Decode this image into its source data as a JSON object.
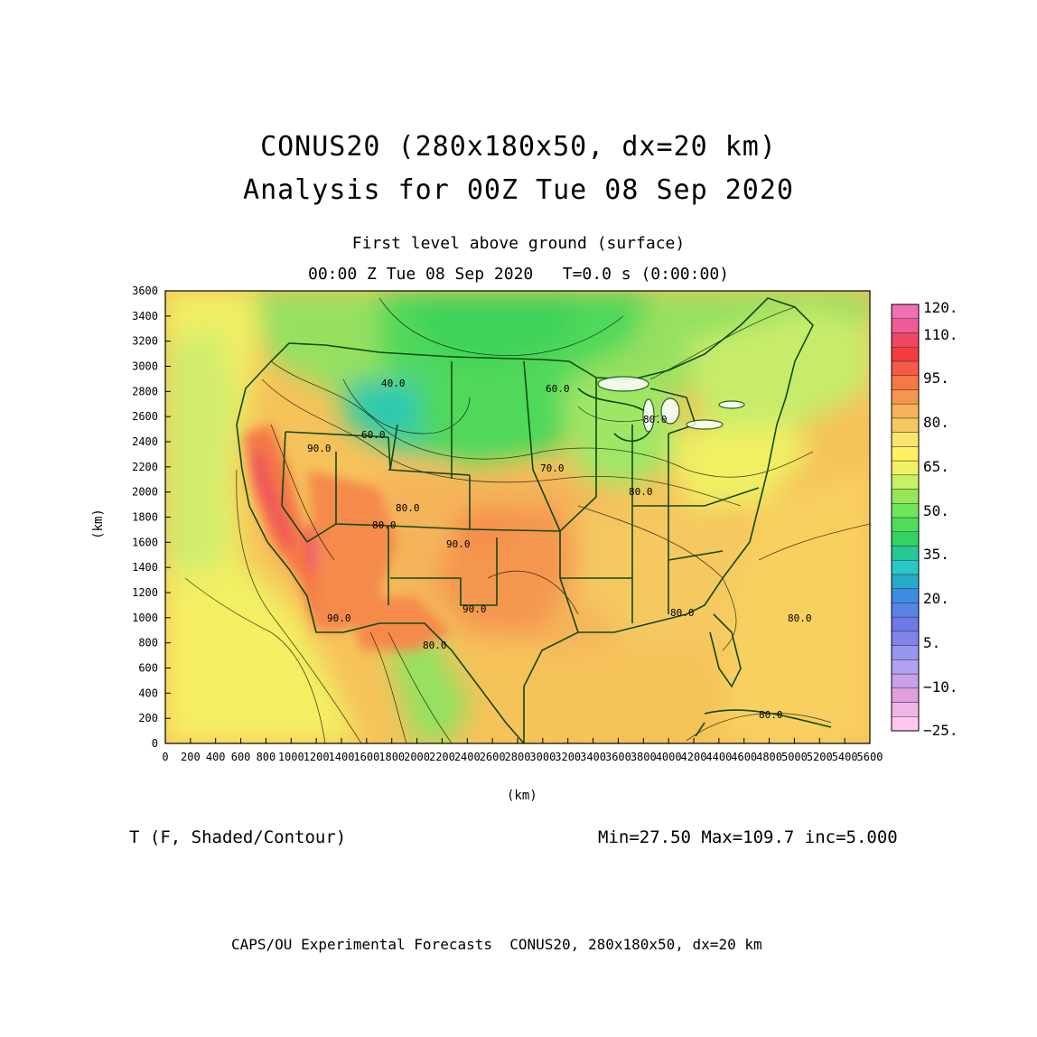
{
  "title": {
    "line1": "CONUS20 (280x180x50, dx=20 km)",
    "line2": "Analysis for 00Z Tue 08 Sep 2020"
  },
  "subtitle": {
    "line1": "First level above ground (surface)",
    "line2": "00:00 Z Tue 08 Sep 2020   T=0.0 s (0:00:00)"
  },
  "axes": {
    "x_label": "(km)",
    "y_label": "(km)",
    "x_ticks": [
      "0",
      "200",
      "400",
      "600",
      "800",
      "1000",
      "1200",
      "1400",
      "1600",
      "1800",
      "2000",
      "2200",
      "2400",
      "2600",
      "2800",
      "3000",
      "3200",
      "3400",
      "3600",
      "3800",
      "4000",
      "4200",
      "4400",
      "4600",
      "4800",
      "5000",
      "5200",
      "5400",
      "5600"
    ],
    "y_ticks": [
      "0",
      "200",
      "400",
      "600",
      "800",
      "1000",
      "1200",
      "1400",
      "1600",
      "1800",
      "2000",
      "2200",
      "2400",
      "2600",
      "2800",
      "3000",
      "3200",
      "3400",
      "3600"
    ]
  },
  "colorbar": {
    "labels": [
      "120.",
      "110.",
      "95.",
      "80.",
      "65.",
      "50.",
      "35.",
      "20.",
      "5.",
      "−10.",
      "−25."
    ],
    "colors": [
      "#ffc8f0",
      "#f0b4e6",
      "#e0a0dc",
      "#c8a0e8",
      "#b4a0f0",
      "#9696f0",
      "#8282ec",
      "#6e78e6",
      "#5a82e6",
      "#3c8ce6",
      "#28aac8",
      "#28c8c8",
      "#28c896",
      "#32d264",
      "#50dc5a",
      "#6ee65a",
      "#96e65a",
      "#c8f064",
      "#f0f064",
      "#fff064",
      "#fae66e",
      "#f5c860",
      "#f5b45a",
      "#f59650",
      "#f57846",
      "#f55a46",
      "#f53c3c",
      "#f04664",
      "#f05a96",
      "#f070b4"
    ]
  },
  "map_labels": [
    "40.0",
    "60.0",
    "80.0",
    "60.0",
    "90.0",
    "70.0",
    "80.0",
    "80.0",
    "90.0",
    "90.0",
    "90.0",
    "80.0",
    "80.0",
    "80.0",
    "80.0",
    "80.0"
  ],
  "footer": {
    "variable": "T (F, Shaded/Contour)",
    "stats": "Min=27.50 Max=109.7 inc=5.000",
    "credit": "CAPS/OU Experimental Forecasts  CONUS20, 280x180x50, dx=20 km"
  }
}
